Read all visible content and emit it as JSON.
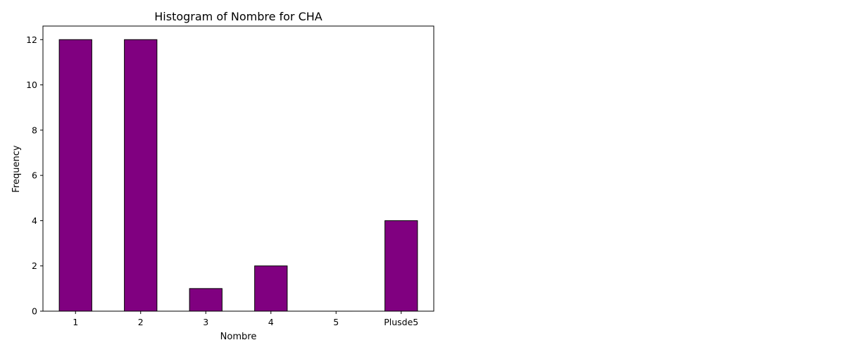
{
  "chart_data": {
    "type": "bar",
    "title": "Histogram of Nombre for CHA",
    "xlabel": "Nombre",
    "ylabel": "Frequency",
    "categories": [
      "1",
      "2",
      "3",
      "4",
      "5",
      "Plusde5"
    ],
    "values": [
      12,
      12,
      1,
      2,
      0,
      4
    ],
    "ylim": [
      0,
      12.6
    ],
    "yticks": [
      0,
      2,
      4,
      6,
      8,
      10,
      12
    ],
    "grid": false,
    "bar_color": "#800080",
    "edge_color": "#000000"
  }
}
